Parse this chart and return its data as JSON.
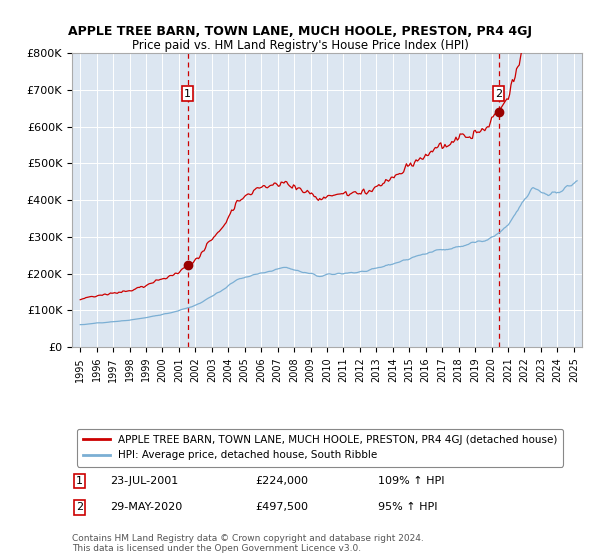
{
  "title": "APPLE TREE BARN, TOWN LANE, MUCH HOOLE, PRESTON, PR4 4GJ",
  "subtitle": "Price paid vs. HM Land Registry's House Price Index (HPI)",
  "bg_color": "#dce6f1",
  "red_line_color": "#cc0000",
  "blue_line_color": "#7bafd4",
  "marker_color": "#990000",
  "dashed_color": "#cc0000",
  "ylim": [
    0,
    800000
  ],
  "yticks": [
    0,
    100000,
    200000,
    300000,
    400000,
    500000,
    600000,
    700000,
    800000
  ],
  "ytick_labels": [
    "£0",
    "£100K",
    "£200K",
    "£300K",
    "£400K",
    "£500K",
    "£600K",
    "£700K",
    "£800K"
  ],
  "sale1_year": 2001.55,
  "sale1_price": 224000,
  "sale2_year": 2020.41,
  "sale2_price": 497500,
  "legend_red": "APPLE TREE BARN, TOWN LANE, MUCH HOOLE, PRESTON, PR4 4GJ (detached house)",
  "legend_blue": "HPI: Average price, detached house, South Ribble",
  "note1_label": "1",
  "note1_date": "23-JUL-2001",
  "note1_price": "£224,000",
  "note1_hpi": "109% ↑ HPI",
  "note2_label": "2",
  "note2_date": "29-MAY-2020",
  "note2_price": "£497,500",
  "note2_hpi": "95% ↑ HPI",
  "footer": "Contains HM Land Registry data © Crown copyright and database right 2024.\nThis data is licensed under the Open Government Licence v3.0."
}
